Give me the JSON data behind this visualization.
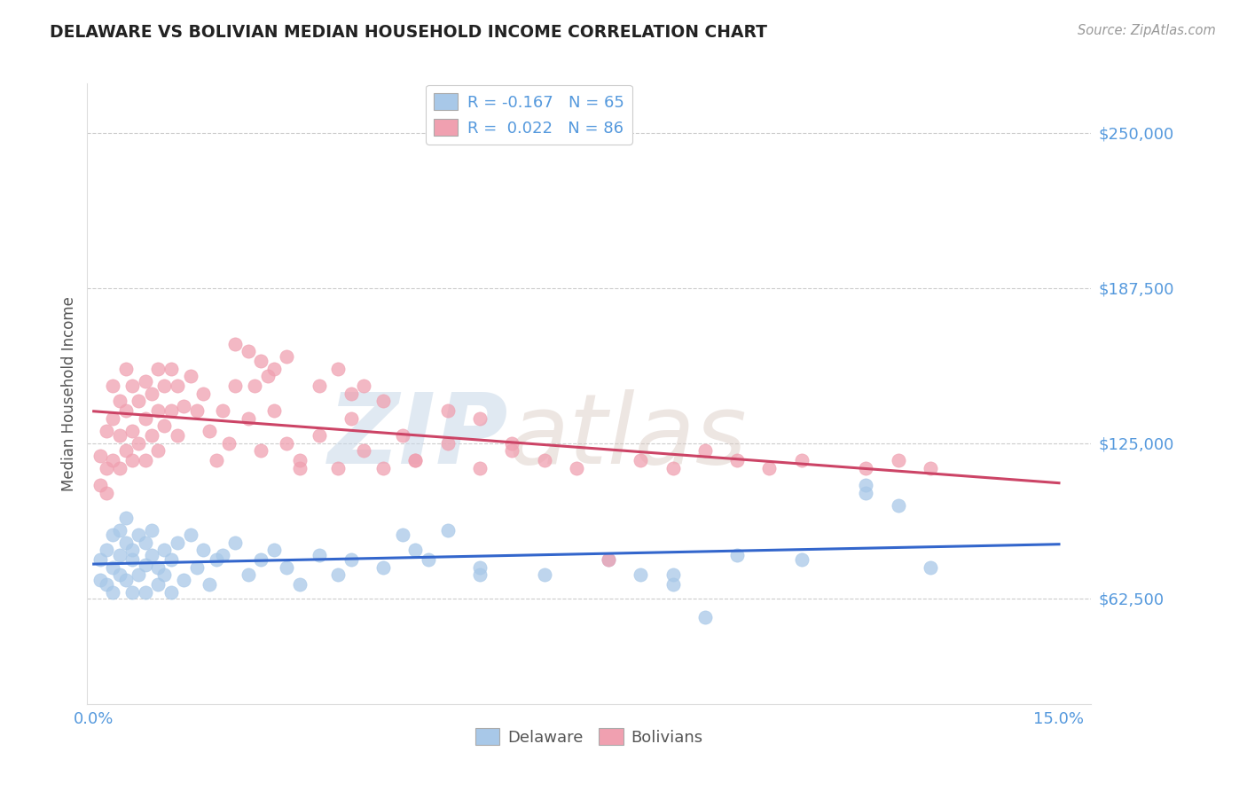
{
  "title": "DELAWARE VS BOLIVIAN MEDIAN HOUSEHOLD INCOME CORRELATION CHART",
  "source": "Source: ZipAtlas.com",
  "ylabel": "Median Household Income",
  "ylim": [
    20000,
    270000
  ],
  "xlim": [
    -0.001,
    0.155
  ],
  "yticks": [
    62500,
    125000,
    187500,
    250000
  ],
  "ytick_labels": [
    "$62,500",
    "$125,000",
    "$187,500",
    "$250,000"
  ],
  "xticks": [
    0.0,
    0.025,
    0.05,
    0.075,
    0.1,
    0.125,
    0.15
  ],
  "xtick_labels": [
    "0.0%",
    "",
    "",
    "",
    "",
    "",
    "15.0%"
  ],
  "legend_entries": [
    {
      "label": "R = -0.167   N = 65",
      "color": "#a8c8e8"
    },
    {
      "label": "R =  0.022   N = 86",
      "color": "#f0a0b0"
    }
  ],
  "legend_labels": [
    "Delaware",
    "Bolivians"
  ],
  "delaware_color": "#a8c8e8",
  "bolivian_color": "#f0a0b0",
  "trend_delaware_color": "#3366cc",
  "trend_bolivian_color": "#cc4466",
  "watermark_zip": "ZIP",
  "watermark_atlas": "atlas",
  "title_color": "#222222",
  "axis_label_color": "#5599dd",
  "background_color": "#ffffff",
  "grid_color": "#cccccc",
  "delaware_x": [
    0.001,
    0.001,
    0.002,
    0.002,
    0.003,
    0.003,
    0.003,
    0.004,
    0.004,
    0.004,
    0.005,
    0.005,
    0.005,
    0.006,
    0.006,
    0.006,
    0.007,
    0.007,
    0.008,
    0.008,
    0.008,
    0.009,
    0.009,
    0.01,
    0.01,
    0.011,
    0.011,
    0.012,
    0.012,
    0.013,
    0.014,
    0.015,
    0.016,
    0.017,
    0.018,
    0.019,
    0.02,
    0.022,
    0.024,
    0.026,
    0.028,
    0.03,
    0.032,
    0.035,
    0.038,
    0.04,
    0.045,
    0.05,
    0.055,
    0.06,
    0.07,
    0.08,
    0.09,
    0.1,
    0.11,
    0.12,
    0.13,
    0.12,
    0.125,
    0.085,
    0.09,
    0.095,
    0.048,
    0.052,
    0.06
  ],
  "delaware_y": [
    78000,
    70000,
    82000,
    68000,
    88000,
    75000,
    65000,
    80000,
    72000,
    90000,
    85000,
    70000,
    95000,
    78000,
    65000,
    82000,
    88000,
    72000,
    85000,
    76000,
    65000,
    80000,
    90000,
    75000,
    68000,
    82000,
    72000,
    78000,
    65000,
    85000,
    70000,
    88000,
    75000,
    82000,
    68000,
    78000,
    80000,
    85000,
    72000,
    78000,
    82000,
    75000,
    68000,
    80000,
    72000,
    78000,
    75000,
    82000,
    90000,
    75000,
    72000,
    78000,
    72000,
    80000,
    78000,
    105000,
    75000,
    108000,
    100000,
    72000,
    68000,
    55000,
    88000,
    78000,
    72000
  ],
  "bolivian_x": [
    0.001,
    0.001,
    0.002,
    0.002,
    0.002,
    0.003,
    0.003,
    0.003,
    0.004,
    0.004,
    0.004,
    0.005,
    0.005,
    0.005,
    0.006,
    0.006,
    0.006,
    0.007,
    0.007,
    0.008,
    0.008,
    0.008,
    0.009,
    0.009,
    0.01,
    0.01,
    0.01,
    0.011,
    0.011,
    0.012,
    0.012,
    0.013,
    0.013,
    0.014,
    0.015,
    0.016,
    0.017,
    0.018,
    0.019,
    0.02,
    0.021,
    0.022,
    0.024,
    0.026,
    0.028,
    0.03,
    0.032,
    0.035,
    0.038,
    0.04,
    0.042,
    0.045,
    0.048,
    0.05,
    0.055,
    0.06,
    0.065,
    0.07,
    0.075,
    0.08,
    0.085,
    0.09,
    0.095,
    0.1,
    0.105,
    0.11,
    0.12,
    0.125,
    0.13,
    0.024,
    0.026,
    0.028,
    0.03,
    0.025,
    0.027,
    0.035,
    0.04,
    0.045,
    0.055,
    0.06,
    0.065,
    0.038,
    0.042,
    0.032,
    0.022,
    0.05
  ],
  "bolivian_y": [
    120000,
    108000,
    130000,
    115000,
    105000,
    148000,
    135000,
    118000,
    142000,
    128000,
    115000,
    155000,
    138000,
    122000,
    148000,
    130000,
    118000,
    142000,
    125000,
    150000,
    135000,
    118000,
    145000,
    128000,
    155000,
    138000,
    122000,
    148000,
    132000,
    155000,
    138000,
    148000,
    128000,
    140000,
    152000,
    138000,
    145000,
    130000,
    118000,
    138000,
    125000,
    148000,
    135000,
    122000,
    138000,
    125000,
    118000,
    128000,
    115000,
    135000,
    122000,
    115000,
    128000,
    118000,
    125000,
    115000,
    122000,
    118000,
    115000,
    78000,
    118000,
    115000,
    122000,
    118000,
    115000,
    118000,
    115000,
    118000,
    115000,
    162000,
    158000,
    155000,
    160000,
    148000,
    152000,
    148000,
    145000,
    142000,
    138000,
    135000,
    125000,
    155000,
    148000,
    115000,
    165000,
    118000
  ]
}
